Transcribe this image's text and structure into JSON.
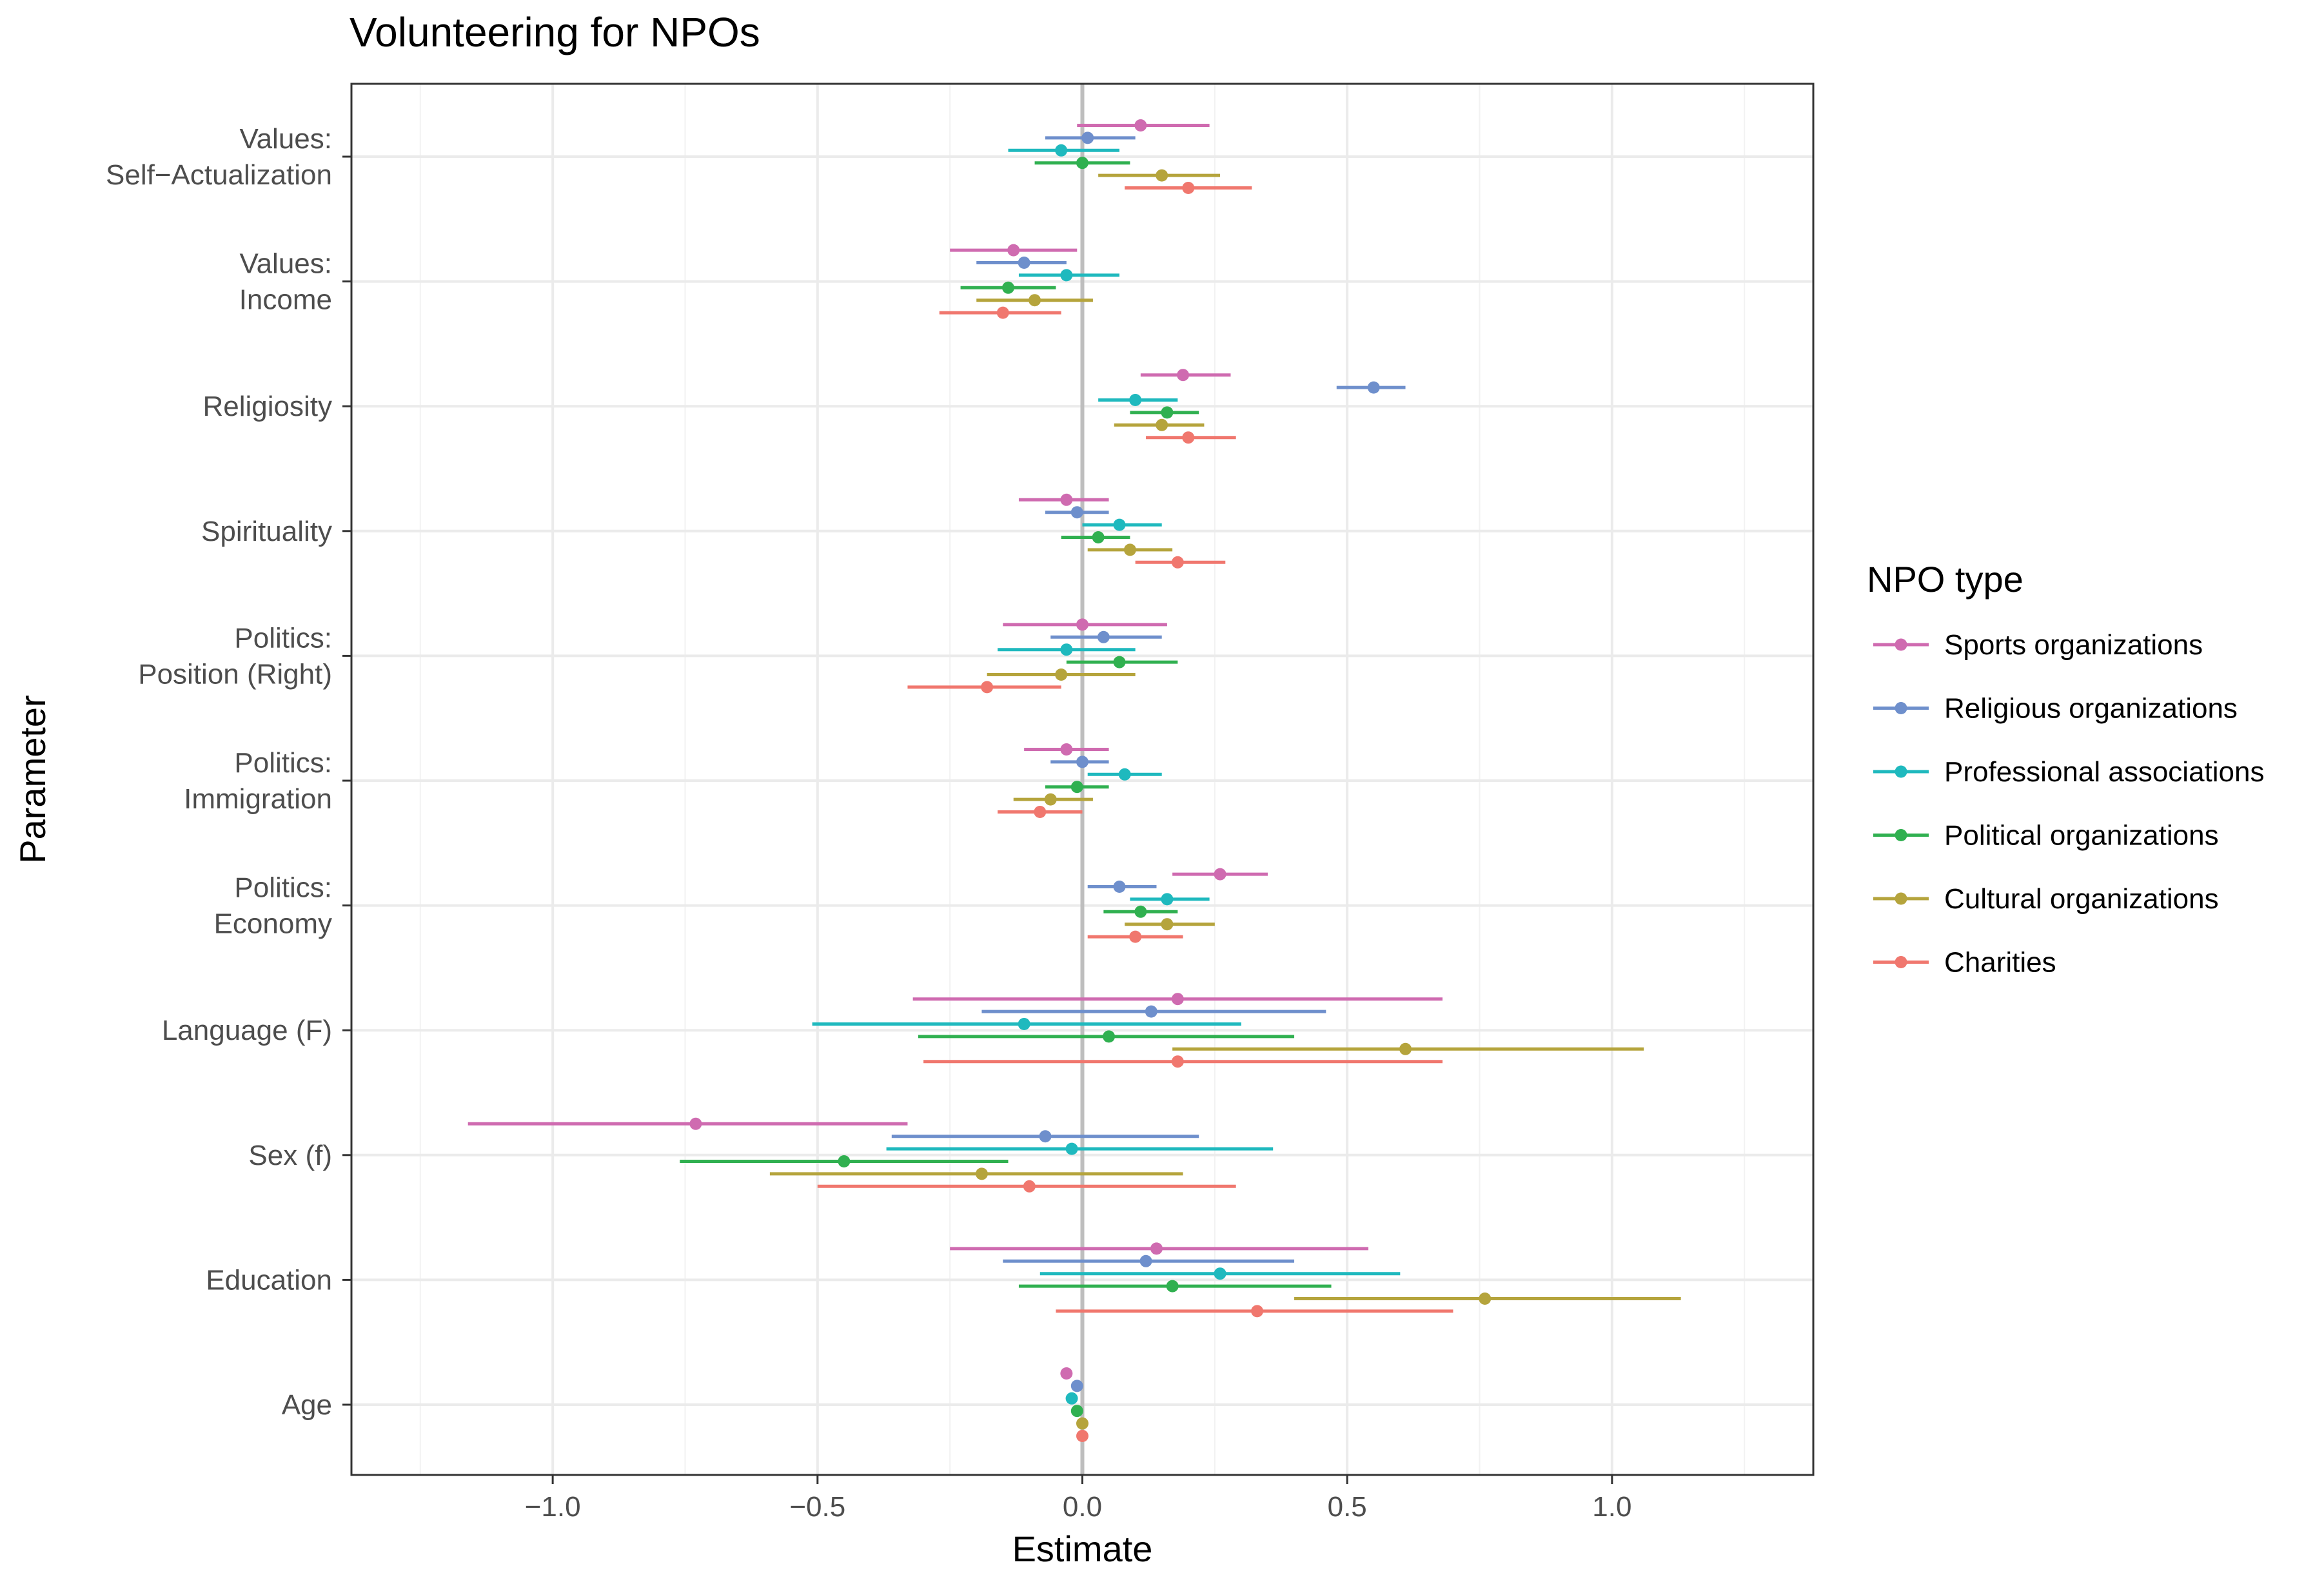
{
  "chart_data": {
    "type": "scatter",
    "title": "Volunteering for NPOs",
    "xlabel": "Estimate",
    "ylabel": "Parameter",
    "xlim": [
      -1.38,
      1.38
    ],
    "x_ticks": [
      -1.0,
      -0.5,
      0.0,
      0.5,
      1.0
    ],
    "x_tick_labels": [
      "−1.0",
      "−0.5",
      "0.0",
      "0.5",
      "1.0"
    ],
    "grid": true,
    "zero_line": 0,
    "legend": {
      "title": "NPO type",
      "position": "right"
    },
    "parameters": [
      "Values:\nSelf−Actualization",
      "Values:\nIncome",
      "Religiosity",
      "Spirituality",
      "Politics:\nPosition (Right)",
      "Politics:\nImmigration",
      "Politics:\nEconomy",
      "Language (F)",
      "Sex (f)",
      "Education",
      "Age"
    ],
    "series": [
      {
        "name": "Sports organizations",
        "color": "#CF6BB0",
        "estimates": [
          0.11,
          -0.13,
          0.19,
          -0.03,
          0.0,
          -0.03,
          0.26,
          0.18,
          -0.73,
          0.14,
          -0.03
        ],
        "lower": [
          -0.01,
          -0.25,
          0.11,
          -0.12,
          -0.15,
          -0.11,
          0.17,
          -0.32,
          -1.16,
          -0.25,
          -0.04
        ],
        "upper": [
          0.24,
          -0.01,
          0.28,
          0.05,
          0.16,
          0.05,
          0.35,
          0.68,
          -0.33,
          0.54,
          -0.02
        ]
      },
      {
        "name": "Religious organizations",
        "color": "#6E8FCC",
        "estimates": [
          0.01,
          -0.11,
          0.55,
          -0.01,
          0.04,
          0.0,
          0.07,
          0.13,
          -0.07,
          0.12,
          -0.01
        ],
        "lower": [
          -0.07,
          -0.2,
          0.48,
          -0.07,
          -0.06,
          -0.06,
          0.01,
          -0.19,
          -0.36,
          -0.15,
          -0.02
        ],
        "upper": [
          0.1,
          -0.03,
          0.61,
          0.05,
          0.15,
          0.05,
          0.14,
          0.46,
          0.22,
          0.4,
          0.0
        ]
      },
      {
        "name": "Professional associations",
        "color": "#1FB9BE",
        "estimates": [
          -0.04,
          -0.03,
          0.1,
          0.07,
          -0.03,
          0.08,
          0.16,
          -0.11,
          -0.02,
          0.26,
          -0.02
        ],
        "lower": [
          -0.14,
          -0.12,
          0.03,
          0.0,
          -0.16,
          0.01,
          0.09,
          -0.51,
          -0.37,
          -0.08,
          -0.03
        ],
        "upper": [
          0.07,
          0.07,
          0.18,
          0.15,
          0.1,
          0.15,
          0.24,
          0.3,
          0.36,
          0.6,
          -0.01
        ]
      },
      {
        "name": "Political organizations",
        "color": "#30B050",
        "estimates": [
          0.0,
          -0.14,
          0.16,
          0.03,
          0.07,
          -0.01,
          0.11,
          0.05,
          -0.45,
          0.17,
          -0.01
        ],
        "lower": [
          -0.09,
          -0.23,
          0.09,
          -0.04,
          -0.03,
          -0.07,
          0.04,
          -0.31,
          -0.76,
          -0.12,
          -0.02
        ],
        "upper": [
          0.09,
          -0.05,
          0.22,
          0.09,
          0.18,
          0.05,
          0.18,
          0.4,
          -0.14,
          0.47,
          0.0
        ]
      },
      {
        "name": "Cultural organizations",
        "color": "#B5A43C",
        "estimates": [
          0.15,
          -0.09,
          0.15,
          0.09,
          -0.04,
          -0.06,
          0.16,
          0.61,
          -0.19,
          0.76,
          0.0
        ],
        "lower": [
          0.03,
          -0.2,
          0.06,
          0.01,
          -0.18,
          -0.13,
          0.08,
          0.17,
          -0.59,
          0.4,
          -0.01
        ],
        "upper": [
          0.26,
          0.02,
          0.23,
          0.17,
          0.1,
          0.02,
          0.25,
          1.06,
          0.19,
          1.13,
          0.01
        ]
      },
      {
        "name": "Charities",
        "color": "#F0776E",
        "estimates": [
          0.2,
          -0.15,
          0.2,
          0.18,
          -0.18,
          -0.08,
          0.1,
          0.18,
          -0.1,
          0.33,
          0.0
        ],
        "lower": [
          0.08,
          -0.27,
          0.12,
          0.1,
          -0.33,
          -0.16,
          0.01,
          -0.3,
          -0.5,
          -0.05,
          -0.01
        ],
        "upper": [
          0.32,
          -0.04,
          0.29,
          0.27,
          -0.04,
          0.0,
          0.19,
          0.68,
          0.29,
          0.7,
          0.01
        ]
      }
    ]
  }
}
